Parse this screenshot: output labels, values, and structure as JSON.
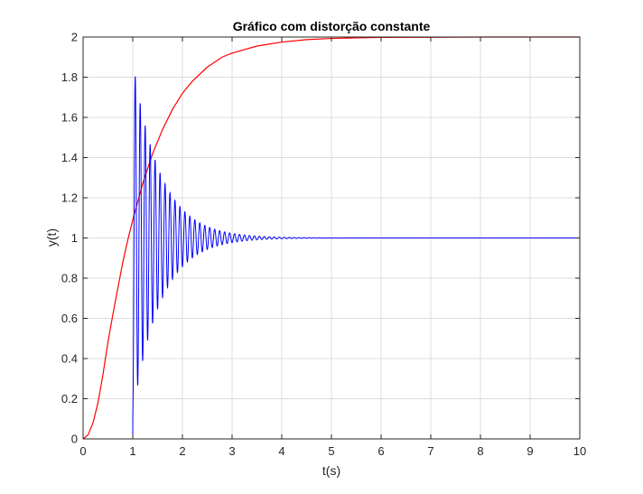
{
  "chart_data": {
    "type": "line",
    "title": "Gráfico com distorção constante",
    "xlabel": "t(s)",
    "ylabel": "y(t)",
    "xlim": [
      0,
      10
    ],
    "ylim": [
      0,
      2
    ],
    "x_ticks": [
      0,
      1,
      2,
      3,
      4,
      5,
      6,
      7,
      8,
      9,
      10
    ],
    "y_ticks": [
      0,
      0.2,
      0.4,
      0.6,
      0.8,
      1,
      1.2,
      1.4,
      1.6,
      1.8,
      2
    ],
    "x_tick_labels": [
      "0",
      "1",
      "2",
      "3",
      "4",
      "5",
      "6",
      "7",
      "8",
      "9",
      "10"
    ],
    "y_tick_labels": [
      "0",
      "0.2",
      "0.4",
      "0.6",
      "0.8",
      "1",
      "1.2",
      "1.4",
      "1.6",
      "1.8",
      "2"
    ],
    "grid": true,
    "box": true,
    "series": [
      {
        "color": "#ff0000",
        "x": [
          0,
          0.1,
          0.2,
          0.3,
          0.4,
          0.5,
          0.6,
          0.7,
          0.8,
          0.9,
          1.0,
          1.2,
          1.4,
          1.6,
          1.8,
          2.0,
          2.2,
          2.5,
          2.8,
          3.0,
          3.5,
          4.0,
          4.5,
          5.0,
          5.5,
          6.0,
          7.0,
          8.0,
          9.0,
          10.0
        ],
        "y": [
          0,
          0.02,
          0.08,
          0.18,
          0.32,
          0.48,
          0.62,
          0.75,
          0.88,
          0.99,
          1.09,
          1.27,
          1.42,
          1.54,
          1.64,
          1.72,
          1.78,
          1.85,
          1.9,
          1.92,
          1.955,
          1.975,
          1.987,
          1.993,
          1.996,
          1.998,
          1.999,
          2.0,
          2.0,
          2.0
        ]
      },
      {
        "color": "#0000ff",
        "x": [
          0,
          0.9,
          1.0,
          1.0
        ],
        "y": [
          0,
          0,
          0,
          0
        ],
        "delay": 1.0,
        "overshoot": 0.88,
        "envelope_end": 1.9,
        "period": 0.1,
        "settling": 3.0,
        "steady_value": 1,
        "end_time": 10
      }
    ]
  }
}
